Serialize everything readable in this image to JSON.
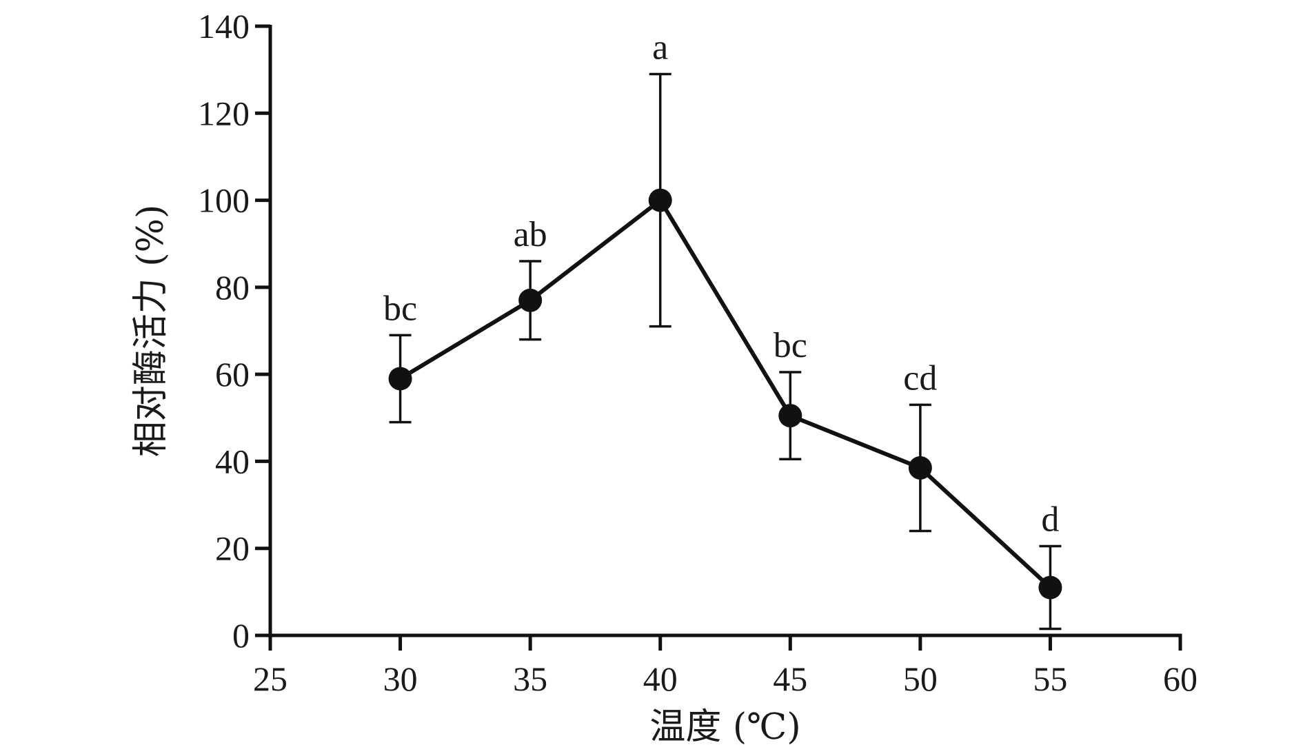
{
  "chart_data": {
    "type": "line",
    "xlabel": "温度 (℃)",
    "ylabel": "相对酶活力 (%)",
    "xlim": [
      25,
      60
    ],
    "ylim": [
      0,
      140
    ],
    "xticks": [
      25,
      30,
      35,
      40,
      45,
      50,
      55,
      60
    ],
    "yticks": [
      0,
      20,
      40,
      60,
      80,
      100,
      120,
      140
    ],
    "grid": false,
    "legend": "none",
    "color": "#111111",
    "series": [
      {
        "x": [
          30,
          35,
          40,
          45,
          50,
          55
        ],
        "y": [
          59,
          77,
          100,
          50.5,
          38.5,
          11
        ],
        "error": [
          10,
          9,
          29,
          10,
          14.5,
          9.5
        ],
        "labels": [
          "bc",
          "ab",
          "a",
          "bc",
          "cd",
          "d"
        ]
      }
    ]
  }
}
